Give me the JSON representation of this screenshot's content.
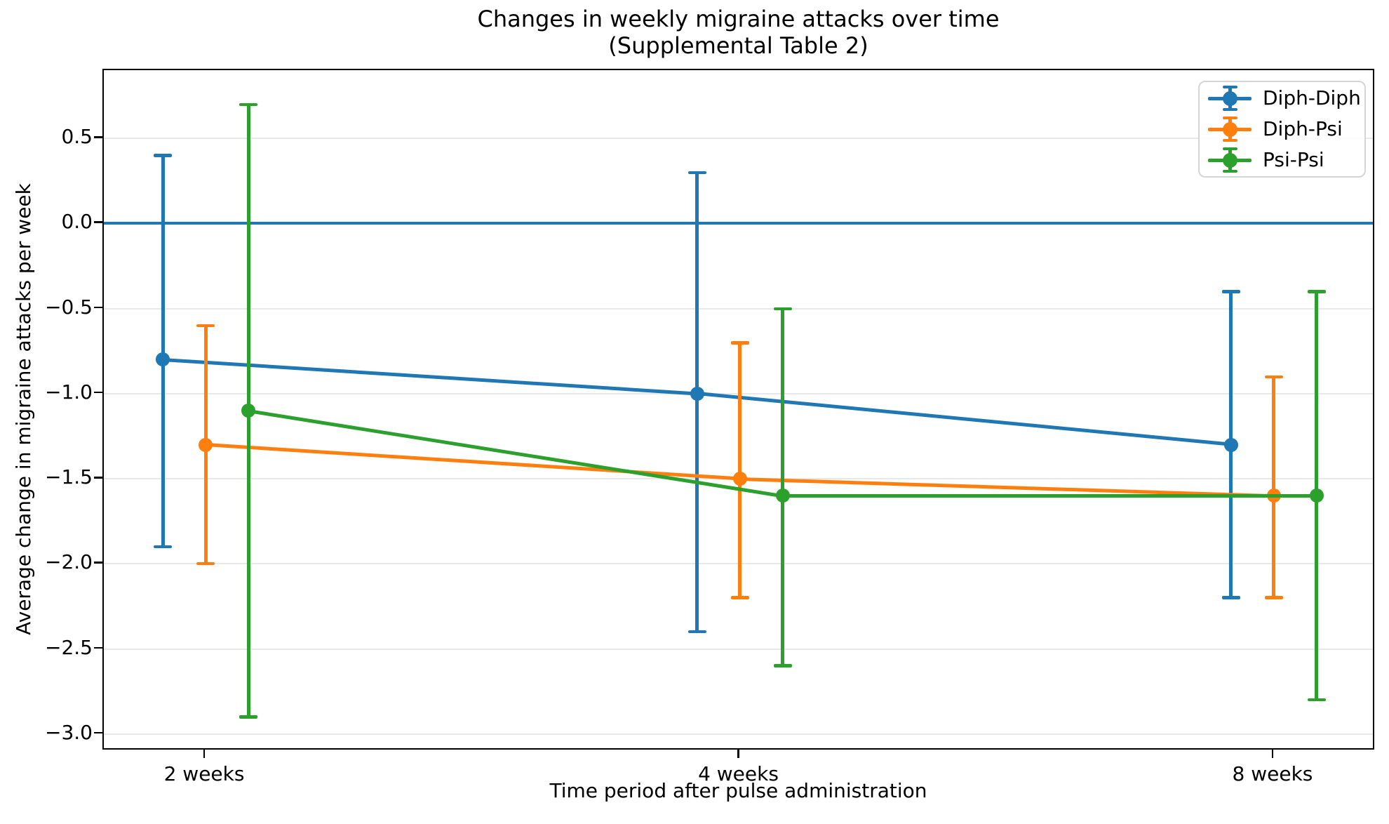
{
  "title": {
    "line1": "Changes in weekly migraine attacks over time",
    "line2": "(Supplemental Table 2)"
  },
  "axes": {
    "xlabel": "Time period after pulse administration",
    "ylabel": "Average change in migraine attacks per week",
    "x_tick_labels": [
      "2 weeks",
      "4 weeks",
      "8 weeks"
    ],
    "y_ticks": [
      0.5,
      0.0,
      -0.5,
      -1.0,
      -1.5,
      -2.0,
      -2.5,
      -3.0
    ],
    "y_tick_labels": [
      "0.5",
      "0.0",
      "−0.5",
      "−1.0",
      "−1.5",
      "−2.0",
      "−2.5",
      "−3.0"
    ],
    "zero_line_value": 0,
    "zero_line_color": "#1f77b4",
    "grid_color": "#e8e8e8"
  },
  "chart_data": {
    "type": "line",
    "title": "Changes in weekly migraine attacks over time (Supplemental Table 2)",
    "xlabel": "Time period after pulse administration",
    "ylabel": "Average change in migraine attacks per week",
    "categories": [
      "2 weeks",
      "4 weeks",
      "8 weeks"
    ],
    "series": [
      {
        "name": "Diph-Diph",
        "color": "#1f77b4",
        "values": [
          -0.8,
          -1.0,
          -1.3
        ],
        "err_low": [
          -1.9,
          -2.4,
          -2.2
        ],
        "err_high": [
          0.4,
          0.3,
          -0.4
        ]
      },
      {
        "name": "Diph-Psi",
        "color": "#ff7f0e",
        "values": [
          -1.3,
          -1.5,
          -1.6
        ],
        "err_low": [
          -2.0,
          -2.2,
          -2.2
        ],
        "err_high": [
          -0.6,
          -0.7,
          -0.9
        ]
      },
      {
        "name": "Psi-Psi",
        "color": "#2ca02c",
        "values": [
          -1.1,
          -1.6,
          -1.6
        ],
        "err_low": [
          -2.9,
          -2.6,
          -2.8
        ],
        "err_high": [
          0.7,
          -0.5,
          -0.4
        ]
      }
    ],
    "ylim": [
      -3.1,
      0.9
    ],
    "grid": "horizontal",
    "legend_position": "upper right",
    "annotations": [
      "horizontal reference line at y = 0"
    ]
  }
}
